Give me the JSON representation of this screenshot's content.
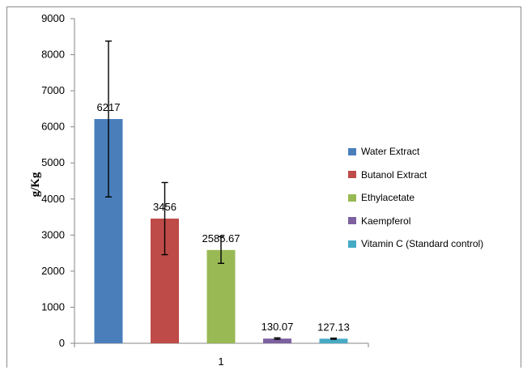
{
  "chart_data": {
    "type": "bar",
    "title": "",
    "xlabel": "",
    "ylabel": "g/Kg",
    "categories": [
      "1"
    ],
    "ylim": [
      0,
      9000
    ],
    "yticks": [
      0,
      1000,
      2000,
      3000,
      4000,
      5000,
      6000,
      7000,
      8000,
      9000
    ],
    "grid": false,
    "legend_position": "right",
    "series": [
      {
        "name": "Water Extract",
        "value": 6217,
        "label": "6217",
        "error": 2160,
        "color": "#4a7ebb"
      },
      {
        "name": "Butanol Extract",
        "value": 3456,
        "label": "3456",
        "error": 1000,
        "color": "#be4b48"
      },
      {
        "name": "Ethylacetate",
        "value": 2585.67,
        "label": "2585.67",
        "error": 370,
        "color": "#98b954"
      },
      {
        "name": "Kaempferol",
        "value": 130.07,
        "label": "130.07",
        "error": 20,
        "color": "#7d60a0"
      },
      {
        "name": "Vitamin C (Standard control)",
        "value": 127.13,
        "label": "127.13",
        "error": 15,
        "color": "#46aac5"
      }
    ]
  }
}
